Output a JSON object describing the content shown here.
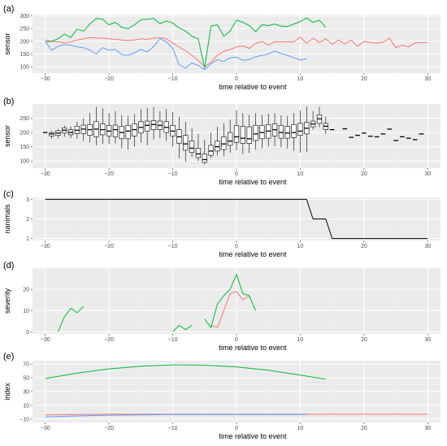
{
  "colors": {
    "panel_bg": "#ebebeb",
    "grid_major": "#ffffff",
    "series_a": "#f8766d",
    "series_b": "#00ba38",
    "series_c": "#619cff",
    "box": "#000000",
    "line": "#000000"
  },
  "chart_data": [
    {
      "id": "a",
      "panel_label": "(a)",
      "type": "line",
      "xlabel": "time relative to event",
      "ylabel": "sensor",
      "xlim": [
        -32,
        32
      ],
      "ylim": [
        75,
        305
      ],
      "xticks": [
        -30,
        -20,
        -10,
        0,
        10,
        20,
        30
      ],
      "yticks": [
        100,
        150,
        200,
        250,
        300
      ],
      "grid": true,
      "series": [
        {
          "color_key": "series_a",
          "x": [
            -30,
            -29,
            -28,
            -27,
            -26,
            -25,
            -24,
            -23,
            -22,
            -21,
            -20,
            -19,
            -18,
            -17,
            -16,
            -15,
            -14,
            -13,
            -12,
            -11,
            -10,
            -9,
            -8,
            -7,
            -6,
            -5,
            -4,
            -3,
            -2,
            -1,
            0,
            1,
            2,
            3,
            4,
            5,
            6,
            7,
            8,
            9,
            10,
            11,
            12,
            13,
            14,
            15,
            16,
            17,
            18,
            19,
            20,
            21,
            22,
            23,
            24,
            25,
            26,
            27,
            28,
            29,
            30
          ],
          "y": [
            205,
            200,
            198,
            195,
            198,
            205,
            210,
            215,
            213,
            212,
            210,
            208,
            205,
            203,
            205,
            210,
            208,
            212,
            214,
            210,
            193,
            178,
            163,
            145,
            125,
            100,
            118,
            145,
            160,
            168,
            178,
            182,
            172,
            192,
            200,
            185,
            199,
            198,
            198,
            198,
            217,
            192,
            212,
            195,
            210,
            188,
            205,
            190,
            205,
            180,
            200,
            195,
            193,
            197,
            212,
            175,
            185,
            178,
            194,
            195,
            195
          ]
        },
        {
          "color_key": "series_b",
          "x": [
            -30,
            -29,
            -28,
            -27,
            -26,
            -25,
            -24,
            -23,
            -22,
            -21,
            -20,
            -19,
            -18,
            -17,
            -16,
            -15,
            -14,
            -13,
            -12,
            -11,
            -10,
            -9,
            -8,
            -7,
            -6,
            -5,
            -4,
            -3,
            -2,
            -1,
            0,
            1,
            2,
            3,
            4,
            5,
            6,
            7,
            8,
            9,
            10,
            11,
            12,
            13,
            14
          ],
          "y": [
            198,
            200,
            210,
            228,
            215,
            248,
            240,
            268,
            290,
            287,
            265,
            275,
            255,
            250,
            265,
            285,
            287,
            290,
            270,
            280,
            272,
            252,
            240,
            220,
            210,
            95,
            260,
            265,
            220,
            240,
            283,
            275,
            262,
            238,
            265,
            262,
            268,
            260,
            258,
            268,
            278,
            292,
            275,
            283,
            255
          ]
        },
        {
          "color_key": "series_c",
          "x": [
            -30,
            -29,
            -28,
            -27,
            -26,
            -25,
            -24,
            -23,
            -22,
            -21,
            -20,
            -19,
            -18,
            -17,
            -16,
            -15,
            -14,
            -13,
            -12,
            -11,
            -10,
            -9,
            -8,
            -7,
            -6,
            -5,
            -4,
            -3,
            -2,
            -1,
            0,
            1,
            2,
            3,
            4,
            5,
            6,
            7,
            8,
            9,
            10,
            11
          ],
          "y": [
            200,
            165,
            180,
            188,
            185,
            178,
            175,
            165,
            150,
            175,
            165,
            168,
            148,
            145,
            155,
            168,
            158,
            180,
            210,
            198,
            172,
            108,
            95,
            115,
            105,
            88,
            112,
            128,
            120,
            135,
            138,
            125,
            128,
            140,
            145,
            150,
            162,
            152,
            145,
            135,
            126,
            132
          ]
        }
      ]
    },
    {
      "id": "b",
      "panel_label": "(b)",
      "type": "boxplot",
      "xlabel": "time relative to event",
      "ylabel": "sensor",
      "xlim": [
        -32,
        32
      ],
      "ylim": [
        75,
        300
      ],
      "xticks": [
        -30,
        -20,
        -10,
        0,
        10,
        20,
        30
      ],
      "yticks": [
        100,
        150,
        200,
        250
      ],
      "grid": true,
      "boxes": [
        {
          "x": -30,
          "min": 200,
          "q1": 200,
          "med": 200,
          "q3": 200,
          "max": 200
        },
        {
          "x": -29,
          "min": 178,
          "q1": 188,
          "med": 195,
          "q3": 200,
          "max": 205
        },
        {
          "x": -28,
          "min": 180,
          "q1": 190,
          "med": 198,
          "q3": 206,
          "max": 213
        },
        {
          "x": -27,
          "min": 185,
          "q1": 198,
          "med": 208,
          "q3": 216,
          "max": 225
        },
        {
          "x": -26,
          "min": 180,
          "q1": 192,
          "med": 200,
          "q3": 210,
          "max": 222
        },
        {
          "x": -25,
          "min": 178,
          "q1": 196,
          "med": 208,
          "q3": 222,
          "max": 238
        },
        {
          "x": -24,
          "min": 170,
          "q1": 196,
          "med": 212,
          "q3": 226,
          "max": 250
        },
        {
          "x": -23,
          "min": 165,
          "q1": 190,
          "med": 210,
          "q3": 228,
          "max": 268
        },
        {
          "x": -22,
          "min": 155,
          "q1": 185,
          "med": 212,
          "q3": 238,
          "max": 290
        },
        {
          "x": -21,
          "min": 160,
          "q1": 192,
          "med": 210,
          "q3": 230,
          "max": 285
        },
        {
          "x": -20,
          "min": 160,
          "q1": 188,
          "med": 205,
          "q3": 225,
          "max": 268
        },
        {
          "x": -19,
          "min": 162,
          "q1": 185,
          "med": 210,
          "q3": 226,
          "max": 275
        },
        {
          "x": -18,
          "min": 145,
          "q1": 178,
          "med": 200,
          "q3": 222,
          "max": 262
        },
        {
          "x": -17,
          "min": 140,
          "q1": 178,
          "med": 205,
          "q3": 225,
          "max": 258
        },
        {
          "x": -16,
          "min": 150,
          "q1": 188,
          "med": 210,
          "q3": 230,
          "max": 265
        },
        {
          "x": -15,
          "min": 165,
          "q1": 198,
          "med": 218,
          "q3": 238,
          "max": 282
        },
        {
          "x": -14,
          "min": 155,
          "q1": 205,
          "med": 225,
          "q3": 240,
          "max": 287
        },
        {
          "x": -13,
          "min": 175,
          "q1": 210,
          "med": 228,
          "q3": 242,
          "max": 290
        },
        {
          "x": -12,
          "min": 180,
          "q1": 210,
          "med": 225,
          "q3": 240,
          "max": 275
        },
        {
          "x": -11,
          "min": 170,
          "q1": 200,
          "med": 218,
          "q3": 238,
          "max": 282
        },
        {
          "x": -10,
          "min": 150,
          "q1": 188,
          "med": 205,
          "q3": 225,
          "max": 272
        },
        {
          "x": -9,
          "min": 110,
          "q1": 162,
          "med": 185,
          "q3": 210,
          "max": 255
        },
        {
          "x": -8,
          "min": 98,
          "q1": 138,
          "med": 160,
          "q3": 190,
          "max": 238
        },
        {
          "x": -7,
          "min": 115,
          "q1": 130,
          "med": 145,
          "q3": 170,
          "max": 215
        },
        {
          "x": -6,
          "min": 100,
          "q1": 112,
          "med": 125,
          "q3": 145,
          "max": 195
        },
        {
          "x": -5,
          "min": 88,
          "q1": 95,
          "med": 105,
          "q3": 125,
          "max": 175
        },
        {
          "x": -4,
          "min": 110,
          "q1": 120,
          "med": 135,
          "q3": 155,
          "max": 200
        },
        {
          "x": -3,
          "min": 120,
          "q1": 135,
          "med": 150,
          "q3": 170,
          "max": 220
        },
        {
          "x": -2,
          "min": 118,
          "q1": 140,
          "med": 160,
          "q3": 185,
          "max": 232
        },
        {
          "x": -1,
          "min": 130,
          "q1": 155,
          "med": 170,
          "q3": 200,
          "max": 245
        },
        {
          "x": 0,
          "min": 138,
          "q1": 165,
          "med": 185,
          "q3": 225,
          "max": 278
        },
        {
          "x": 1,
          "min": 125,
          "q1": 162,
          "med": 180,
          "q3": 222,
          "max": 268
        },
        {
          "x": 2,
          "min": 128,
          "q1": 162,
          "med": 178,
          "q3": 220,
          "max": 262
        },
        {
          "x": 3,
          "min": 140,
          "q1": 172,
          "med": 195,
          "q3": 225,
          "max": 268
        },
        {
          "x": 4,
          "min": 145,
          "q1": 178,
          "med": 200,
          "q3": 225,
          "max": 262
        },
        {
          "x": 5,
          "min": 150,
          "q1": 180,
          "med": 205,
          "q3": 228,
          "max": 266
        },
        {
          "x": 6,
          "min": 152,
          "q1": 188,
          "med": 210,
          "q3": 230,
          "max": 268
        },
        {
          "x": 7,
          "min": 148,
          "q1": 180,
          "med": 200,
          "q3": 225,
          "max": 260
        },
        {
          "x": 8,
          "min": 145,
          "q1": 180,
          "med": 198,
          "q3": 222,
          "max": 258
        },
        {
          "x": 9,
          "min": 135,
          "q1": 182,
          "med": 200,
          "q3": 228,
          "max": 268
        },
        {
          "x": 10,
          "min": 130,
          "q1": 190,
          "med": 205,
          "q3": 232,
          "max": 278
        },
        {
          "x": 11,
          "min": 132,
          "q1": 195,
          "med": 215,
          "q3": 236,
          "max": 292
        },
        {
          "x": 12,
          "min": 210,
          "q1": 220,
          "med": 230,
          "q3": 240,
          "max": 275
        },
        {
          "x": 13,
          "min": 218,
          "q1": 232,
          "med": 248,
          "q3": 262,
          "max": 290
        },
        {
          "x": 14,
          "min": 195,
          "q1": 210,
          "med": 222,
          "q3": 232,
          "max": 255
        },
        {
          "x": 15,
          "min": 210,
          "q1": 210,
          "med": 210,
          "q3": 210,
          "max": 210
        },
        {
          "x": 17,
          "min": 213,
          "q1": 213,
          "med": 213,
          "q3": 213,
          "max": 213
        },
        {
          "x": 18,
          "min": 183,
          "q1": 183,
          "med": 183,
          "q3": 183,
          "max": 183
        },
        {
          "x": 19,
          "min": 190,
          "q1": 190,
          "med": 190,
          "q3": 190,
          "max": 190
        },
        {
          "x": 20,
          "min": 198,
          "q1": 198,
          "med": 198,
          "q3": 198,
          "max": 198
        },
        {
          "x": 21,
          "min": 187,
          "q1": 187,
          "med": 187,
          "q3": 187,
          "max": 187
        },
        {
          "x": 22,
          "min": 185,
          "q1": 185,
          "med": 185,
          "q3": 185,
          "max": 185
        },
        {
          "x": 23,
          "min": 195,
          "q1": 195,
          "med": 195,
          "q3": 195,
          "max": 195
        },
        {
          "x": 24,
          "min": 212,
          "q1": 212,
          "med": 212,
          "q3": 212,
          "max": 212
        },
        {
          "x": 25,
          "min": 172,
          "q1": 172,
          "med": 172,
          "q3": 172,
          "max": 172
        },
        {
          "x": 26,
          "min": 185,
          "q1": 185,
          "med": 185,
          "q3": 185,
          "max": 185
        },
        {
          "x": 27,
          "min": 180,
          "q1": 180,
          "med": 180,
          "q3": 180,
          "max": 180
        },
        {
          "x": 28,
          "min": 175,
          "q1": 175,
          "med": 175,
          "q3": 175,
          "max": 175
        },
        {
          "x": 29,
          "min": 195,
          "q1": 195,
          "med": 195,
          "q3": 195,
          "max": 195
        }
      ]
    },
    {
      "id": "c",
      "panel_label": "(c)",
      "type": "line",
      "xlabel": "time relative to event",
      "ylabel": "nanimals",
      "xlim": [
        -32,
        32
      ],
      "ylim": [
        0.9,
        3.1
      ],
      "xticks": [
        -30,
        -20,
        -10,
        0,
        10,
        20,
        30
      ],
      "yticks": [
        1,
        2,
        3
      ],
      "grid": true,
      "series": [
        {
          "color_key": "line",
          "x": [
            -30,
            11,
            12,
            13,
            14,
            15,
            30
          ],
          "y": [
            3,
            3,
            2,
            2,
            2,
            1,
            1
          ]
        }
      ]
    },
    {
      "id": "d",
      "panel_label": "(d)",
      "type": "line",
      "xlabel": "time relative to event",
      "ylabel": "severity",
      "xlim": [
        -32,
        32
      ],
      "ylim": [
        -1,
        30
      ],
      "xticks": [
        -30,
        -20,
        -10,
        0,
        10,
        20,
        30
      ],
      "yticks": [
        0,
        10,
        20
      ],
      "grid": true,
      "series": [
        {
          "color_key": "series_a",
          "x": [
            -4,
            -3,
            -2,
            -1,
            0,
            1,
            2
          ],
          "y": [
            3,
            2,
            10,
            18,
            19,
            15,
            17
          ]
        },
        {
          "color_key": "series_b",
          "segments": [
            {
              "x": [
                -28,
                -27,
                -26,
                -25,
                -24
              ],
              "y": [
                0,
                7,
                11,
                9,
                12
              ]
            },
            {
              "x": [
                -10,
                -9,
                -8,
                -7
              ],
              "y": [
                0,
                3,
                1,
                3
              ]
            },
            {
              "x": [
                -5,
                -4,
                -3,
                -2,
                -1,
                0,
                1,
                2,
                3
              ],
              "y": [
                6,
                2,
                13,
                17,
                20,
                27,
                18,
                17,
                10
              ]
            }
          ]
        }
      ]
    },
    {
      "id": "e",
      "panel_label": "(e)",
      "type": "line",
      "xlabel": "time relative to event",
      "ylabel": "index",
      "xlim": [
        -32,
        32
      ],
      "ylim": [
        -15,
        75
      ],
      "xticks": [
        -30,
        -20,
        -10,
        0,
        10,
        20,
        30
      ],
      "yticks": [
        -10,
        10,
        30,
        50,
        70
      ],
      "grid": true,
      "series": [
        {
          "color_key": "series_b",
          "x": [
            -30,
            -25,
            -20,
            -15,
            -10,
            -8,
            -5,
            0,
            5,
            10,
            14
          ],
          "y": [
            49,
            57,
            63,
            67,
            69,
            69,
            68.5,
            66,
            61,
            54,
            48
          ]
        },
        {
          "color_key": "series_a",
          "x": [
            -30,
            -20,
            -10,
            0,
            10,
            20,
            30
          ],
          "y": [
            -4,
            -3,
            -3,
            -3,
            -3,
            -3,
            -3
          ]
        },
        {
          "color_key": "series_c",
          "x": [
            -30,
            -25,
            -20,
            -15,
            -10,
            0,
            11
          ],
          "y": [
            -7,
            -5.5,
            -4.5,
            -4,
            -3.5,
            -3.5,
            -3.5
          ]
        }
      ]
    }
  ]
}
